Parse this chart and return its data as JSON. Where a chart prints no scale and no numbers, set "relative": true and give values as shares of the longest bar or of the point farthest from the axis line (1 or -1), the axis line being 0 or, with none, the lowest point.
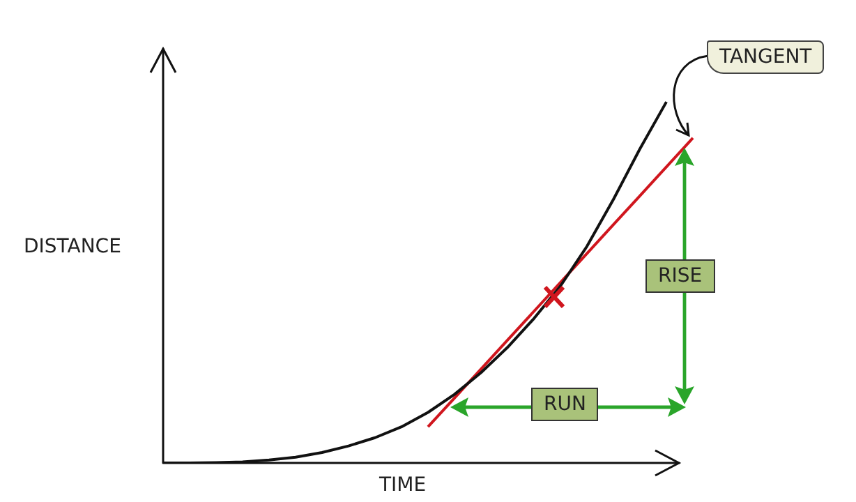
{
  "chart_data": {
    "type": "line",
    "relative": true,
    "xlabel": "TIME",
    "ylabel": "DISTANCE",
    "categories": [
      null,
      null,
      null,
      null,
      null,
      null,
      null,
      null,
      null,
      null,
      null,
      null,
      null,
      null,
      null,
      null,
      null,
      null,
      null,
      null,
      null
    ],
    "series": [
      {
        "type": "line",
        "color": "#111111",
        "marker": "none",
        "values": [
          0,
          0,
          0.001,
          0.003,
          0.008,
          0.016,
          0.029,
          0.047,
          0.07,
          0.1,
          0.14,
          0.19,
          0.25,
          0.32,
          0.4,
          0.49,
          0.6,
          0.73,
          0.87,
          1.0,
          null
        ]
      },
      {
        "type": "line",
        "color": "#d0161e",
        "marker": "none",
        "values": [
          null,
          null,
          null,
          null,
          null,
          null,
          null,
          null,
          null,
          null,
          0.1,
          0.18,
          0.26,
          0.34,
          0.42,
          0.5,
          0.58,
          0.66,
          0.74,
          0.82,
          0.9
        ]
      }
    ],
    "annotations": [
      "TANGENT",
      "RISE",
      "RUN"
    ],
    "grid": false,
    "legend": false
  }
}
